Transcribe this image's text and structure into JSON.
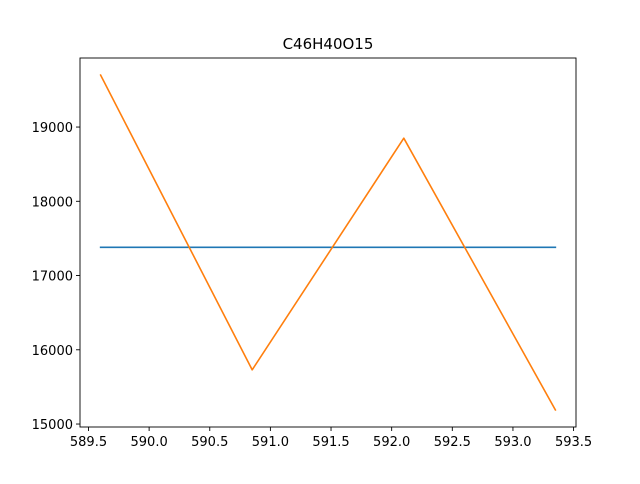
{
  "chart_data": {
    "type": "line",
    "title": "C46H40O15",
    "xlabel": "",
    "ylabel": "",
    "xlim": [
      589.43,
      593.52
    ],
    "ylim": [
      14960,
      19930
    ],
    "xticks": [
      589.5,
      590.0,
      590.5,
      591.0,
      591.5,
      592.0,
      592.5,
      593.0,
      593.5
    ],
    "xtick_labels": [
      "589.5",
      "590.0",
      "590.5",
      "591.0",
      "591.5",
      "592.0",
      "592.5",
      "593.0",
      "593.5"
    ],
    "yticks": [
      15000,
      16000,
      17000,
      18000,
      19000
    ],
    "ytick_labels": [
      "15000",
      "16000",
      "17000",
      "18000",
      "19000"
    ],
    "grid": false,
    "series": [
      {
        "color": "#1f77b4",
        "x": [
          589.6,
          593.35
        ],
        "y": [
          17380,
          17380
        ]
      },
      {
        "color": "#ff7f0e",
        "x": [
          589.6,
          590.85,
          592.1,
          593.35
        ],
        "y": [
          19700,
          15730,
          18850,
          15190
        ]
      }
    ]
  }
}
